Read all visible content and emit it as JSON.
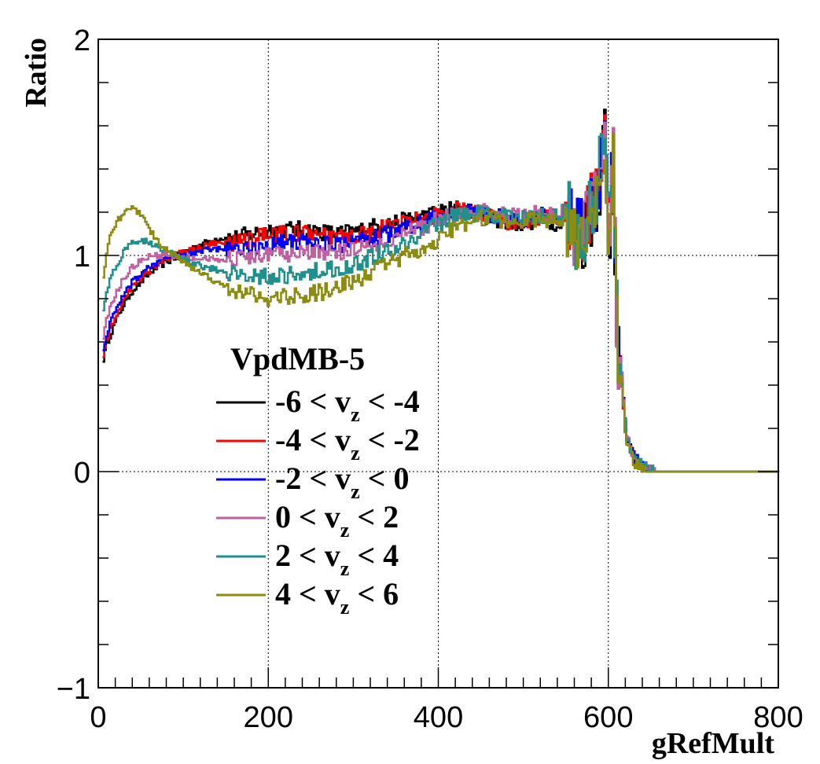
{
  "chart_data": {
    "type": "line",
    "title": "",
    "xlabel": "gRefMult",
    "ylabel": "Ratio",
    "xlim": [
      0,
      800
    ],
    "ylim": [
      -1,
      2
    ],
    "x_ticks": [
      "0",
      "200",
      "400",
      "600",
      "800"
    ],
    "y_ticks": [
      "−1",
      "0",
      "1",
      "2"
    ],
    "grid": "dotted at x=200,400,600 and y=0,1",
    "legend": {
      "header": "VpdMB-5",
      "placement": "middle-left"
    },
    "x": [
      5,
      10,
      20,
      30,
      40,
      50,
      60,
      70,
      80,
      90,
      100,
      120,
      140,
      160,
      180,
      200,
      220,
      240,
      260,
      280,
      300,
      320,
      340,
      360,
      380,
      400,
      420,
      440,
      460,
      480,
      500,
      520,
      540,
      550,
      560,
      570,
      580,
      590,
      595,
      600,
      605,
      610,
      615,
      620,
      630,
      640,
      650,
      700,
      750,
      800
    ],
    "series": [
      {
        "name": "-6 < v_z < -4",
        "label_main": "-6 < v",
        "label_sub": "z",
        "label_tail": " < -4",
        "color": "#000000",
        "values": [
          0.52,
          0.6,
          0.7,
          0.78,
          0.84,
          0.88,
          0.92,
          0.95,
          0.97,
          0.99,
          1.02,
          1.05,
          1.08,
          1.08,
          1.1,
          1.12,
          1.12,
          1.12,
          1.11,
          1.1,
          1.11,
          1.13,
          1.15,
          1.16,
          1.18,
          1.2,
          1.22,
          1.2,
          1.18,
          1.15,
          1.15,
          1.17,
          1.15,
          1.2,
          1.05,
          1.1,
          1.2,
          1.35,
          1.6,
          1.0,
          1.45,
          0.5,
          0.4,
          0.15,
          0.05,
          0.02,
          0.0,
          0.0,
          0.0,
          0.0
        ]
      },
      {
        "name": "-4 < v_z < -2",
        "label_main": "-4 < v",
        "label_sub": "z",
        "label_tail": " < -2",
        "color": "#ff0000",
        "values": [
          0.54,
          0.62,
          0.72,
          0.8,
          0.86,
          0.9,
          0.93,
          0.96,
          0.98,
          1.0,
          1.02,
          1.04,
          1.06,
          1.06,
          1.08,
          1.09,
          1.1,
          1.1,
          1.09,
          1.08,
          1.09,
          1.11,
          1.13,
          1.15,
          1.17,
          1.19,
          1.21,
          1.2,
          1.19,
          1.16,
          1.16,
          1.18,
          1.16,
          1.21,
          1.06,
          1.12,
          1.22,
          1.38,
          1.62,
          1.02,
          1.47,
          0.52,
          0.42,
          0.16,
          0.05,
          0.02,
          0.0,
          0.0,
          0.0,
          0.0
        ]
      },
      {
        "name": "-2 < v_z < 0",
        "label_main": "-2 < v",
        "label_sub": "z",
        "label_tail": " < 0",
        "color": "#0000ff",
        "values": [
          0.57,
          0.65,
          0.75,
          0.83,
          0.88,
          0.92,
          0.95,
          0.97,
          0.99,
          1.0,
          1.0,
          1.02,
          1.03,
          1.03,
          1.04,
          1.05,
          1.06,
          1.06,
          1.05,
          1.05,
          1.06,
          1.08,
          1.1,
          1.12,
          1.15,
          1.18,
          1.2,
          1.2,
          1.19,
          1.17,
          1.17,
          1.19,
          1.17,
          1.22,
          1.07,
          1.13,
          1.23,
          1.4,
          1.64,
          1.03,
          1.48,
          0.53,
          0.43,
          0.17,
          0.06,
          0.02,
          0.0,
          0.0,
          0.0,
          0.0
        ]
      },
      {
        "name": "0 < v_z < 2",
        "label_main": "0 < v",
        "label_sub": "z",
        "label_tail": " < 2",
        "color": "#c060a0",
        "values": [
          0.62,
          0.72,
          0.82,
          0.9,
          0.95,
          0.98,
          1.0,
          1.0,
          1.0,
          1.0,
          0.99,
          0.99,
          0.98,
          0.98,
          0.99,
          1.0,
          1.0,
          1.01,
          1.01,
          1.01,
          1.02,
          1.04,
          1.07,
          1.1,
          1.13,
          1.17,
          1.19,
          1.2,
          1.2,
          1.18,
          1.18,
          1.2,
          1.18,
          1.23,
          1.08,
          1.14,
          1.25,
          1.42,
          1.68,
          1.04,
          1.5,
          0.55,
          0.44,
          0.18,
          0.06,
          0.02,
          0.0,
          0.0,
          0.0,
          0.0
        ]
      },
      {
        "name": "2 < v_z < 4",
        "label_main": "2 < v",
        "label_sub": "z",
        "label_tail": " < 4",
        "color": "#20908c",
        "values": [
          0.75,
          0.85,
          0.95,
          1.02,
          1.06,
          1.07,
          1.06,
          1.04,
          1.02,
          1.0,
          0.98,
          0.95,
          0.93,
          0.92,
          0.91,
          0.9,
          0.91,
          0.92,
          0.93,
          0.94,
          0.96,
          0.99,
          1.02,
          1.06,
          1.1,
          1.15,
          1.18,
          1.19,
          1.19,
          1.18,
          1.18,
          1.19,
          1.17,
          1.22,
          1.07,
          1.13,
          1.24,
          1.4,
          1.65,
          1.03,
          1.48,
          0.53,
          0.43,
          0.17,
          0.05,
          0.02,
          0.0,
          0.0,
          0.0,
          0.0
        ]
      },
      {
        "name": "4 < v_z < 6",
        "label_main": "4 < v",
        "label_sub": "z",
        "label_tail": " < 6",
        "color": "#8c8c10",
        "values": [
          0.9,
          1.05,
          1.15,
          1.2,
          1.22,
          1.18,
          1.12,
          1.06,
          1.02,
          1.0,
          0.97,
          0.92,
          0.87,
          0.84,
          0.82,
          0.8,
          0.81,
          0.82,
          0.83,
          0.85,
          0.88,
          0.92,
          0.96,
          1.0,
          1.04,
          1.08,
          1.13,
          1.16,
          1.17,
          1.16,
          1.16,
          1.17,
          1.15,
          1.18,
          1.04,
          1.1,
          1.2,
          1.36,
          1.6,
          0.98,
          1.44,
          0.48,
          0.4,
          0.14,
          0.04,
          0.01,
          0.0,
          0.0,
          0.0,
          0.0
        ]
      }
    ]
  }
}
